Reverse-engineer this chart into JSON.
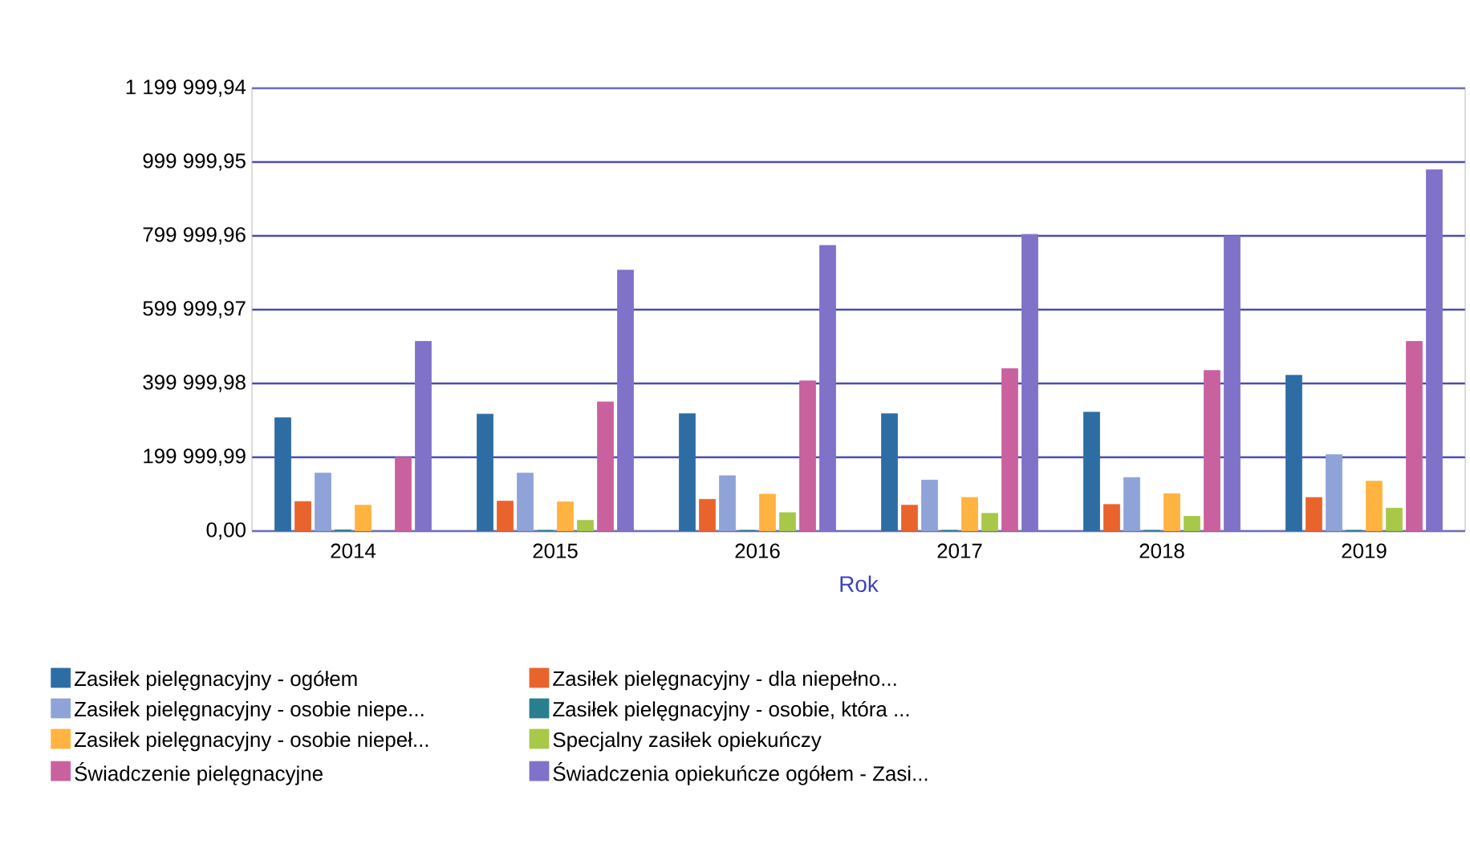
{
  "chart_data": {
    "type": "bar",
    "xlabel": "Rok",
    "categories": [
      "2014",
      "2015",
      "2016",
      "2017",
      "2018",
      "2019"
    ],
    "series": [
      {
        "name": "Zasiłek pielęgnacyjny - ogółem",
        "color": "#2e6da4",
        "values": [
          307000,
          317000,
          318000,
          318000,
          322000,
          422000
        ]
      },
      {
        "name": "Zasiłek pielęgnacyjny - dla niepełno...",
        "color": "#e8642c",
        "values": [
          80000,
          81000,
          86000,
          70000,
          72000,
          91000
        ]
      },
      {
        "name": "Zasiłek pielęgnacyjny - osobie niepe...",
        "color": "#8fa3d8",
        "values": [
          157000,
          157000,
          150000,
          138000,
          145000,
          207000
        ]
      },
      {
        "name": "Zasiłek pielęgnacyjny - osobie, która ...",
        "color": "#2a7f8f",
        "values": [
          3000,
          2000,
          2000,
          2000,
          2000,
          2000
        ]
      },
      {
        "name": "Zasiłek pielęgnacyjny - osobie niepeł...",
        "color": "#ffb340",
        "values": [
          70000,
          79000,
          100000,
          91000,
          101000,
          135000
        ]
      },
      {
        "name": "Specjalny zasiłek opiekuńczy",
        "color": "#a8c84a",
        "values": [
          null,
          29000,
          50000,
          48000,
          40000,
          62000
        ]
      },
      {
        "name": "Świadczenie pielęgnacyjne",
        "color": "#c9619f",
        "values": [
          200000,
          350000,
          407000,
          440000,
          435000,
          514000
        ]
      },
      {
        "name": "Świadczenia opiekuńcze ogółem - Zasi...",
        "color": "#7f72c8",
        "values": [
          514000,
          707000,
          774000,
          804000,
          800000,
          979000
        ]
      }
    ],
    "ylim": [
      0,
      1199999.94
    ],
    "yticks": [
      {
        "value": 0,
        "label": "0,00"
      },
      {
        "value": 199999.99,
        "label": "199 999,99"
      },
      {
        "value": 399999.98,
        "label": "399 999,98"
      },
      {
        "value": 599999.97,
        "label": "599 999,97"
      },
      {
        "value": 799999.96,
        "label": "799 999,96"
      },
      {
        "value": 999999.95,
        "label": "999 999,95"
      },
      {
        "value": 1199999.94,
        "label": "1 199 999,94"
      }
    ],
    "grid": "y",
    "legend": "bottom"
  }
}
